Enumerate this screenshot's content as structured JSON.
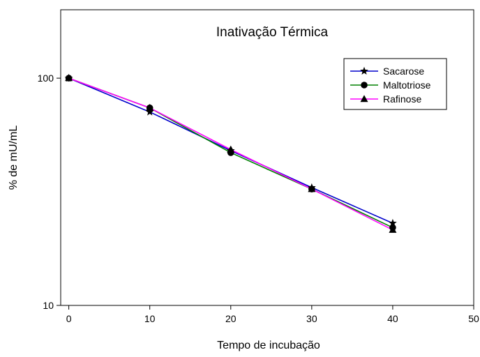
{
  "chart_data": {
    "type": "line",
    "title": "Inativação Térmica",
    "xlabel": "Tempo de incubação",
    "ylabel": "% de mU/mL",
    "x": [
      0,
      10,
      20,
      30,
      40
    ],
    "xlim": [
      -1,
      50
    ],
    "ylim": [
      10,
      200
    ],
    "yscale": "log",
    "xticks": [
      "0",
      "10",
      "20",
      "30",
      "40",
      "50"
    ],
    "yticks": [
      "10",
      "100"
    ],
    "legend_position": "top-right",
    "grid": false,
    "series": [
      {
        "name": "Sacarose",
        "marker": "star",
        "color": "#0000cc",
        "values": [
          100,
          71,
          48,
          33,
          23
        ]
      },
      {
        "name": "Maltotriose",
        "marker": "circle",
        "color": "#008000",
        "values": [
          100,
          74,
          47,
          32.5,
          22
        ]
      },
      {
        "name": "Rafinose",
        "marker": "triangle",
        "color": "#ff00ff",
        "values": [
          100,
          74,
          48.5,
          32.5,
          21.5
        ]
      }
    ]
  }
}
